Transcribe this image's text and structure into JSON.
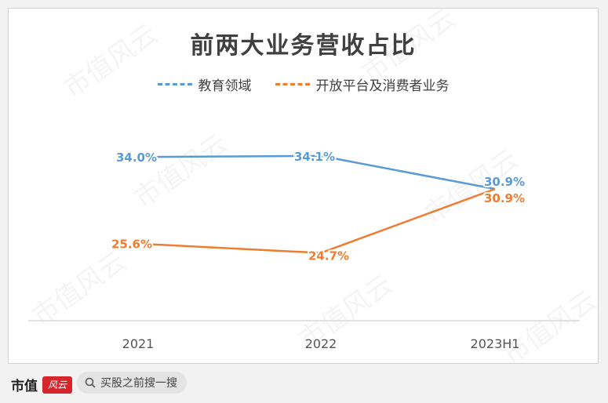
{
  "chart_data": {
    "type": "line",
    "title": "前两大业务营收占比",
    "categories": [
      "2021",
      "2022",
      "2023H1"
    ],
    "series": [
      {
        "name": "教育领域",
        "values": [
          34.0,
          34.1,
          30.9
        ],
        "labels": [
          "34.0%",
          "34.1%",
          "30.9%"
        ],
        "color": "#5b9bd5"
      },
      {
        "name": "开放平台及消费者业务",
        "values": [
          25.6,
          24.7,
          30.9
        ],
        "labels": [
          "25.6%",
          "24.7%",
          "30.9%"
        ],
        "color": "#ed7d31"
      }
    ],
    "ylim": [
      19.5,
      38.5
    ],
    "legend_position": "top",
    "grid": false
  },
  "watermark": "市值风云",
  "footer": {
    "brand_text": "市值",
    "brand_mark": "风云",
    "search_text": "买股之前搜一搜"
  }
}
